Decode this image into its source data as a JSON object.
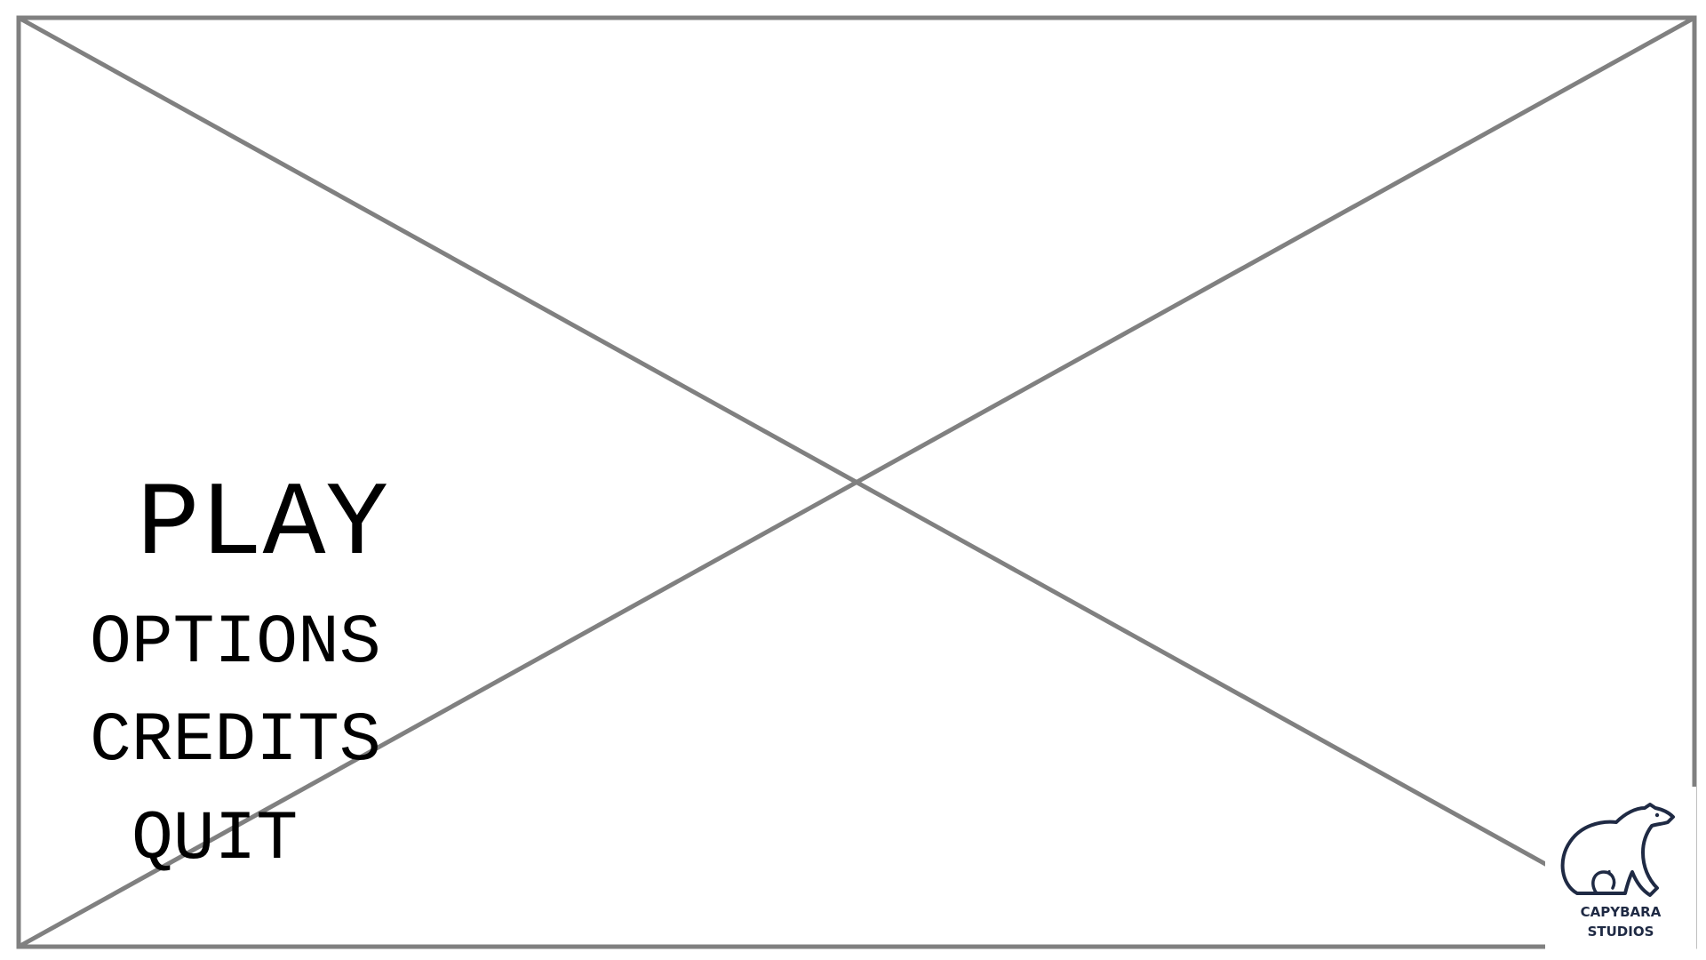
{
  "menu": {
    "items": [
      {
        "id": "play",
        "label": "PLAY"
      },
      {
        "id": "options",
        "label": "OPTIONS"
      },
      {
        "id": "credits",
        "label": "CREDITS"
      },
      {
        "id": "quit",
        "label": "QUIT"
      }
    ]
  },
  "logo": {
    "line1": "CAPYBARA",
    "line2": "STUDIOS",
    "icon": "capybara-icon",
    "color": "#1f2a44"
  },
  "placeholder": {
    "icon": "image-placeholder-cross",
    "stroke_color": "#808080"
  }
}
